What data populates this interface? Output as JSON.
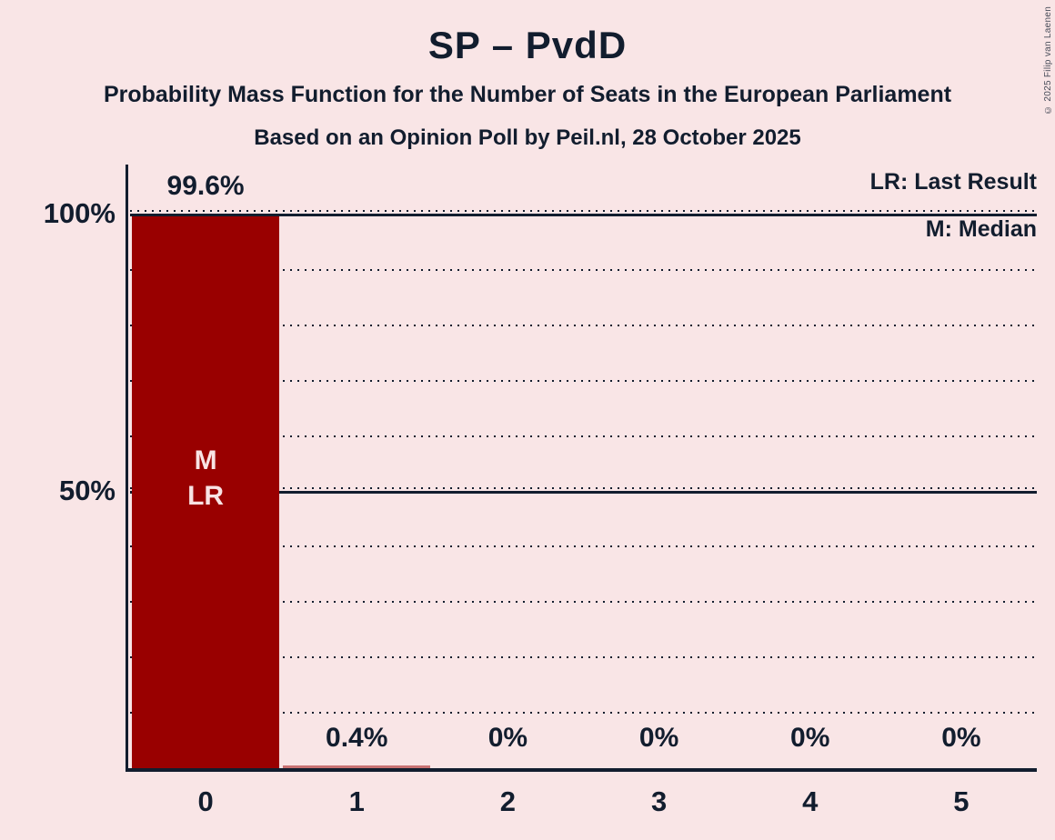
{
  "title": "SP – PvdD",
  "subtitle_line1": "Probability Mass Function for the Number of Seats in the European Parliament",
  "subtitle_line2": "Based on an Opinion Poll by Peil.nl, 28 October 2025",
  "legend": {
    "lr": "LR: Last Result",
    "m": "M: Median"
  },
  "copyright": "© 2025 Filip van Laenen",
  "colors": {
    "background": "#f9e5e6",
    "ink": "#121d2e",
    "bar": "#990000",
    "bar_faint": "rgba(153,0,0,0.5)",
    "bar_text": "#f8e3e4",
    "copyright_text": "#474b58"
  },
  "chart_data": {
    "type": "bar",
    "title": "SP – PvdD",
    "categories": [
      "0",
      "1",
      "2",
      "3",
      "4",
      "5"
    ],
    "values": [
      99.6,
      0.4,
      0,
      0,
      0,
      0
    ],
    "value_labels": [
      "99.6%",
      "0.4%",
      "0%",
      "0%",
      "0%",
      "0%"
    ],
    "xlabel": "",
    "ylabel": "",
    "ylim": [
      0,
      100
    ],
    "yticks": [
      {
        "value": 100,
        "label": "100%"
      },
      {
        "value": 50,
        "label": "50%"
      }
    ],
    "dotted_gridlines": [
      10,
      20,
      30,
      40,
      60,
      70,
      80,
      90
    ],
    "solid_gridlines": [
      50,
      100
    ],
    "grid": "horizontal, dotted each 10%, solid at 50% and 100%",
    "legend_position": "top-right",
    "annotations": [
      {
        "category": "0",
        "lines": [
          "M",
          "LR"
        ],
        "meaning": "Median and Last Result at 0 seats"
      }
    ]
  }
}
